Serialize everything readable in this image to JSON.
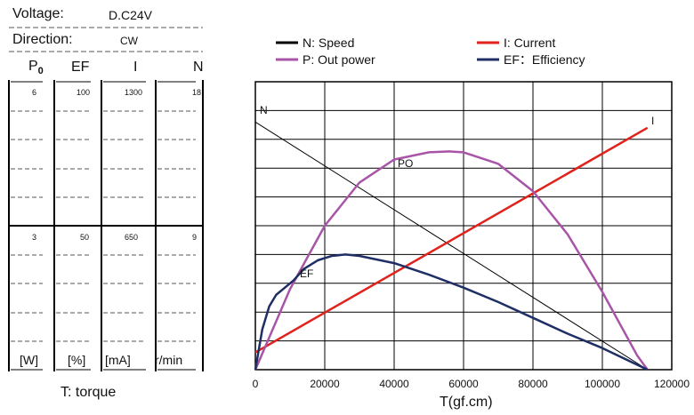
{
  "specs": {
    "voltage_label": "Voltage:",
    "voltage_value": "D.C24V",
    "direction_label": "Direction:",
    "direction_value": "CW"
  },
  "left_table": {
    "headers": [
      "P0",
      "EF",
      "I",
      "N"
    ],
    "top_values": [
      "6",
      "100",
      "1300",
      "18"
    ],
    "mid_values": [
      "3",
      "50",
      "650",
      "9"
    ],
    "units": [
      "[W]",
      "[%]",
      "[mA]",
      "r/min"
    ],
    "footer": "T: torque"
  },
  "chart_data": {
    "type": "line",
    "xlabel": "T(gf.cm)",
    "x_ticks": [
      0,
      20000,
      40000,
      60000,
      80000,
      100000,
      120000
    ],
    "x_tick_labels": [
      "0",
      "20000",
      "40000",
      "60000",
      "80000",
      "100000",
      "120000"
    ],
    "xlim": [
      0,
      120000
    ],
    "ylim": [
      0,
      100
    ],
    "y_unit_note": "percent of left-panel full scale (P0 6 W, EF 100 %, I 1300 mA, N 18 r/min)",
    "grid": true,
    "legend": [
      {
        "key": "N",
        "label": "N: Speed",
        "color": "#000000"
      },
      {
        "key": "PO",
        "label": "P: Out power",
        "color": "#a855a8"
      },
      {
        "key": "I",
        "label": "I: Current",
        "color": "#e0221c"
      },
      {
        "key": "EF",
        "label": "EF：Efficiency",
        "color": "#1f2f66"
      }
    ],
    "curve_labels": {
      "N": "N",
      "PO": "PO",
      "I": "I",
      "EF": "EF"
    },
    "series": [
      {
        "name": "N",
        "color": "#000000",
        "x": [
          0,
          113000
        ],
        "y": [
          86,
          0
        ]
      },
      {
        "name": "I",
        "color": "#e0221c",
        "x": [
          0,
          113000
        ],
        "y": [
          6,
          84
        ]
      },
      {
        "name": "PO",
        "color": "#a855a8",
        "x": [
          0,
          10000,
          20000,
          30000,
          40000,
          50000,
          56000,
          60000,
          70000,
          80000,
          90000,
          100000,
          110000,
          113000
        ],
        "y": [
          0,
          28,
          50,
          65,
          73,
          75.5,
          75.8,
          75.5,
          71.5,
          62,
          47,
          27,
          5,
          0
        ]
      },
      {
        "name": "EF",
        "color": "#1f2f66",
        "x": [
          0,
          2000,
          4000,
          6000,
          8000,
          11000,
          14000,
          18000,
          22000,
          26000,
          30000,
          40000,
          50000,
          60000,
          70000,
          80000,
          90000,
          100000,
          113000
        ],
        "y": [
          0,
          14,
          22,
          26,
          28,
          31,
          35,
          38,
          39.5,
          40,
          39.5,
          37,
          33,
          28.5,
          23.5,
          18,
          12.5,
          7.5,
          0
        ]
      }
    ]
  }
}
